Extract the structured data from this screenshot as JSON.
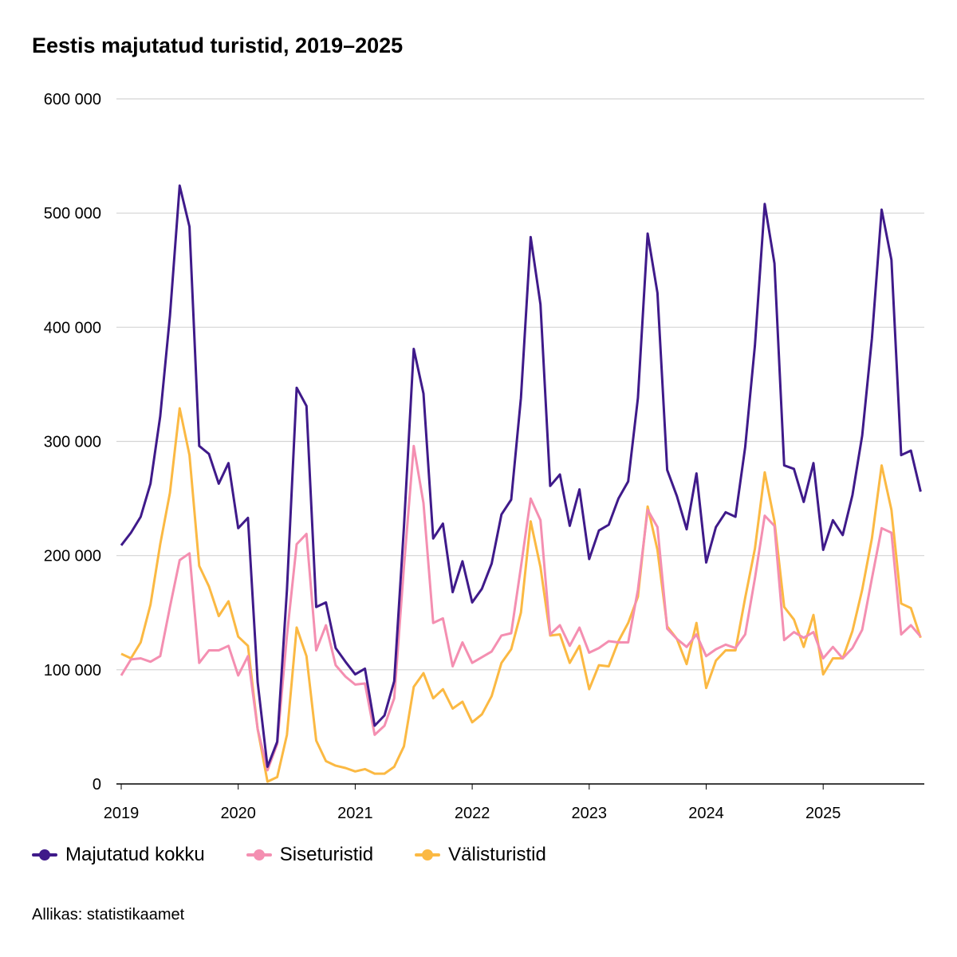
{
  "chart_data": {
    "type": "line",
    "title": "Eestis majutatud turistid, 2019–2025",
    "xlabel": "",
    "ylabel": "",
    "ylim": [
      0,
      600000
    ],
    "yticks": [
      0,
      100000,
      200000,
      300000,
      400000,
      500000,
      600000
    ],
    "ytick_labels": [
      "0",
      "100 000",
      "200 000",
      "300 000",
      "400 000",
      "500 000",
      "600 000"
    ],
    "xtick_labels": [
      "2019",
      "2020",
      "2021",
      "2022",
      "2023",
      "2024",
      "2025"
    ],
    "x_start": "2019-01",
    "x_end": "2025-11",
    "x_frequency": "monthly",
    "grid": true,
    "legend_position": "bottom-left",
    "series": [
      {
        "name": "Majutatud kokku",
        "color": "#3f1a8a",
        "values": [
          209000,
          220000,
          234000,
          263000,
          322000,
          410000,
          524000,
          488000,
          296000,
          289000,
          263000,
          281000,
          224000,
          233000,
          89000,
          15000,
          37000,
          170000,
          347000,
          331000,
          155000,
          159000,
          119000,
          107000,
          96000,
          101000,
          51000,
          60000,
          90000,
          225000,
          381000,
          342000,
          215000,
          228000,
          168000,
          195000,
          159000,
          171000,
          193000,
          236000,
          249000,
          338000,
          479000,
          420000,
          261000,
          271000,
          226000,
          258000,
          197000,
          222000,
          227000,
          250000,
          265000,
          338000,
          482000,
          430000,
          275000,
          252000,
          223000,
          272000,
          194000,
          225000,
          238000,
          234000,
          295000,
          384000,
          508000,
          456000,
          279000,
          276000,
          247000,
          281000,
          205000,
          231000,
          218000,
          253000,
          305000,
          390000,
          503000,
          459000,
          288000,
          292000,
          256000
        ]
      },
      {
        "name": "Siseturistid",
        "color": "#f48fb1",
        "values": [
          95000,
          109000,
          110000,
          107000,
          112000,
          155000,
          196000,
          202000,
          106000,
          117000,
          117000,
          121000,
          95000,
          112000,
          48000,
          12000,
          35000,
          130000,
          210000,
          219000,
          117000,
          139000,
          104000,
          94000,
          87000,
          88000,
          43000,
          51000,
          75000,
          190000,
          296000,
          246000,
          141000,
          145000,
          103000,
          124000,
          106000,
          111000,
          116000,
          130000,
          132000,
          190000,
          250000,
          231000,
          131000,
          139000,
          121000,
          137000,
          115000,
          119000,
          125000,
          124000,
          124000,
          170000,
          240000,
          225000,
          136000,
          127000,
          120000,
          131000,
          112000,
          118000,
          122000,
          119000,
          131000,
          180000,
          235000,
          226000,
          126000,
          133000,
          128000,
          133000,
          110000,
          120000,
          110000,
          119000,
          135000,
          180000,
          224000,
          220000,
          131000,
          139000,
          129000
        ]
      },
      {
        "name": "Välisturistid",
        "color": "#fbb943",
        "values": [
          114000,
          110000,
          124000,
          157000,
          210000,
          255000,
          329000,
          288000,
          191000,
          173000,
          147000,
          160000,
          129000,
          121000,
          48000,
          2000,
          6000,
          43000,
          137000,
          112000,
          38000,
          20000,
          16000,
          14000,
          11000,
          13000,
          9000,
          9000,
          15000,
          33000,
          85000,
          97000,
          75000,
          83000,
          66000,
          72000,
          54000,
          61000,
          77000,
          106000,
          118000,
          150000,
          230000,
          190000,
          130000,
          131000,
          106000,
          121000,
          83000,
          104000,
          103000,
          125000,
          141000,
          164000,
          243000,
          205000,
          138000,
          127000,
          105000,
          141000,
          84000,
          108000,
          117000,
          117000,
          163000,
          206000,
          273000,
          230000,
          155000,
          144000,
          120000,
          148000,
          96000,
          110000,
          110000,
          134000,
          170000,
          215000,
          279000,
          240000,
          158000,
          154000,
          128000
        ]
      }
    ]
  },
  "source": "Allikas: statistikaamet"
}
